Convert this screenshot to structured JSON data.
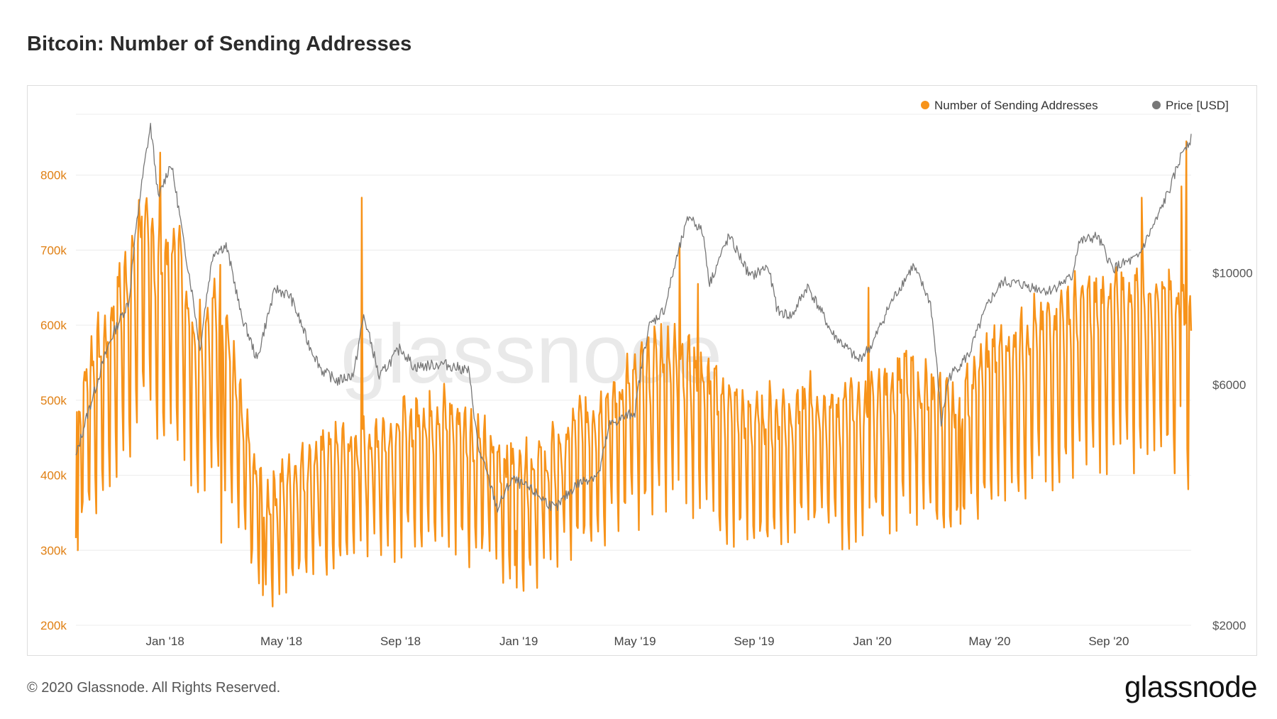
{
  "header": {
    "title": "Bitcoin: Number of Sending Addresses"
  },
  "footer": {
    "copyright": "© 2020 Glassnode. All Rights Reserved.",
    "logo": "glassnode"
  },
  "watermark": "glassnode",
  "colors": {
    "sending": "#f7931a",
    "price": "#777777",
    "grid": "#ececec",
    "left_axis_text": "#e07f12",
    "right_axis_text": "#555555"
  },
  "chart_data": {
    "type": "line",
    "title": "Bitcoin: Number of Sending Addresses",
    "legend": {
      "position": "top-right",
      "entries": [
        "Number of Sending Addresses",
        "Price [USD]"
      ]
    },
    "grid": true,
    "x_range": [
      "2017-10-01",
      "2020-11-25"
    ],
    "x_ticks": [
      {
        "label": "Jan '18",
        "date": "2018-01-01"
      },
      {
        "label": "May '18",
        "date": "2018-05-01"
      },
      {
        "label": "Sep '18",
        "date": "2018-09-01"
      },
      {
        "label": "Jan '19",
        "date": "2019-01-01"
      },
      {
        "label": "May '19",
        "date": "2019-05-01"
      },
      {
        "label": "Sep '19",
        "date": "2019-09-01"
      },
      {
        "label": "Jan '20",
        "date": "2020-01-01"
      },
      {
        "label": "May '20",
        "date": "2020-05-01"
      },
      {
        "label": "Sep '20",
        "date": "2020-09-01"
      }
    ],
    "y_left": {
      "ticks": [
        {
          "value": 200000,
          "label": "200k"
        },
        {
          "value": 300000,
          "label": "300k"
        },
        {
          "value": 400000,
          "label": "400k"
        },
        {
          "value": 500000,
          "label": "500k"
        },
        {
          "value": 600000,
          "label": "600k"
        },
        {
          "value": 700000,
          "label": "700k"
        },
        {
          "value": 800000,
          "label": "800k"
        }
      ],
      "range": [
        200000,
        900000
      ]
    },
    "y_right": {
      "scale": "log",
      "ticks": [
        {
          "value": 2000,
          "label": "$2000"
        },
        {
          "value": 6000,
          "label": "$6000"
        },
        {
          "value": 10000,
          "label": "$10000"
        }
      ],
      "range": [
        2000,
        22000
      ]
    },
    "series": [
      {
        "name": "Number of Sending Addresses",
        "axis": "left",
        "color": "#f7931a",
        "points": [
          [
            "2017-10-01",
            440000
          ],
          [
            "2017-10-15",
            510000
          ],
          [
            "2017-11-01",
            540000
          ],
          [
            "2017-11-15",
            600000
          ],
          [
            "2017-12-01",
            640000
          ],
          [
            "2017-12-10",
            700000
          ],
          [
            "2017-12-20",
            650000
          ],
          [
            "2018-01-01",
            640000
          ],
          [
            "2018-01-15",
            650000
          ],
          [
            "2018-02-01",
            540000
          ],
          [
            "2018-02-15",
            570000
          ],
          [
            "2018-03-01",
            590000
          ],
          [
            "2018-03-15",
            480000
          ],
          [
            "2018-04-01",
            380000
          ],
          [
            "2018-04-15",
            340000
          ],
          [
            "2018-05-01",
            360000
          ],
          [
            "2018-06-01",
            390000
          ],
          [
            "2018-07-01",
            400000
          ],
          [
            "2018-08-01",
            420000
          ],
          [
            "2018-09-01",
            430000
          ],
          [
            "2018-10-01",
            450000
          ],
          [
            "2018-11-01",
            440000
          ],
          [
            "2018-12-01",
            400000
          ],
          [
            "2019-01-01",
            380000
          ],
          [
            "2019-02-01",
            390000
          ],
          [
            "2019-03-01",
            430000
          ],
          [
            "2019-04-01",
            460000
          ],
          [
            "2019-05-01",
            490000
          ],
          [
            "2019-06-01",
            530000
          ],
          [
            "2019-07-01",
            510000
          ],
          [
            "2019-08-01",
            460000
          ],
          [
            "2019-09-01",
            440000
          ],
          [
            "2019-10-01",
            450000
          ],
          [
            "2019-11-01",
            460000
          ],
          [
            "2019-12-01",
            450000
          ],
          [
            "2020-01-01",
            460000
          ],
          [
            "2020-02-01",
            500000
          ],
          [
            "2020-03-01",
            470000
          ],
          [
            "2020-04-01",
            460000
          ],
          [
            "2020-05-01",
            520000
          ],
          [
            "2020-06-01",
            540000
          ],
          [
            "2020-07-01",
            560000
          ],
          [
            "2020-08-01",
            580000
          ],
          [
            "2020-09-01",
            590000
          ],
          [
            "2020-10-01",
            600000
          ],
          [
            "2020-11-01",
            600000
          ],
          [
            "2020-11-25",
            560000
          ]
        ],
        "spikes": [
          [
            "2017-10-03",
            300000
          ],
          [
            "2017-12-27",
            830000
          ],
          [
            "2017-12-08",
            745000
          ],
          [
            "2018-02-28",
            310000
          ],
          [
            "2018-04-12",
            240000
          ],
          [
            "2018-07-23",
            770000
          ],
          [
            "2018-12-28",
            280000
          ],
          [
            "2019-06-16",
            705000
          ],
          [
            "2019-07-05",
            655000
          ],
          [
            "2019-12-28",
            650000
          ],
          [
            "2020-04-01",
            335000
          ],
          [
            "2020-10-05",
            770000
          ],
          [
            "2020-11-20",
            845000
          ],
          [
            "2020-11-15",
            785000
          ]
        ]
      },
      {
        "name": "Price [USD]",
        "axis": "right",
        "color": "#777777",
        "points": [
          [
            "2017-10-01",
            4300
          ],
          [
            "2017-10-20",
            5800
          ],
          [
            "2017-11-05",
            7300
          ],
          [
            "2017-11-25",
            8800
          ],
          [
            "2017-12-08",
            15000
          ],
          [
            "2017-12-17",
            19500
          ],
          [
            "2017-12-25",
            14000
          ],
          [
            "2018-01-07",
            16500
          ],
          [
            "2018-01-20",
            11500
          ],
          [
            "2018-02-06",
            7000
          ],
          [
            "2018-02-20",
            11000
          ],
          [
            "2018-03-05",
            11300
          ],
          [
            "2018-03-20",
            8300
          ],
          [
            "2018-04-06",
            6700
          ],
          [
            "2018-04-25",
            9300
          ],
          [
            "2018-05-10",
            9000
          ],
          [
            "2018-05-28",
            7300
          ],
          [
            "2018-06-12",
            6400
          ],
          [
            "2018-06-28",
            6100
          ],
          [
            "2018-07-15",
            6300
          ],
          [
            "2018-07-25",
            8200
          ],
          [
            "2018-08-10",
            6200
          ],
          [
            "2018-09-01",
            7100
          ],
          [
            "2018-09-15",
            6500
          ],
          [
            "2018-10-15",
            6600
          ],
          [
            "2018-11-10",
            6400
          ],
          [
            "2018-11-20",
            4500
          ],
          [
            "2018-12-10",
            3400
          ],
          [
            "2018-12-25",
            3900
          ],
          [
            "2019-01-15",
            3700
          ],
          [
            "2019-02-08",
            3400
          ],
          [
            "2019-03-01",
            3800
          ],
          [
            "2019-03-25",
            4000
          ],
          [
            "2019-04-05",
            5000
          ],
          [
            "2019-05-01",
            5300
          ],
          [
            "2019-05-15",
            7800
          ],
          [
            "2019-06-01",
            8500
          ],
          [
            "2019-06-26",
            13000
          ],
          [
            "2019-07-10",
            12000
          ],
          [
            "2019-07-17",
            9500
          ],
          [
            "2019-08-06",
            11800
          ],
          [
            "2019-08-28",
            9800
          ],
          [
            "2019-09-15",
            10300
          ],
          [
            "2019-09-25",
            8400
          ],
          [
            "2019-10-10",
            8200
          ],
          [
            "2019-10-26",
            9400
          ],
          [
            "2019-11-20",
            7600
          ],
          [
            "2019-12-17",
            6700
          ],
          [
            "2020-01-01",
            7200
          ],
          [
            "2020-01-20",
            8700
          ],
          [
            "2020-02-12",
            10300
          ],
          [
            "2020-03-01",
            8700
          ],
          [
            "2020-03-12",
            5000
          ],
          [
            "2020-03-20",
            6200
          ],
          [
            "2020-04-10",
            6900
          ],
          [
            "2020-05-01",
            8800
          ],
          [
            "2020-05-15",
            9600
          ],
          [
            "2020-06-01",
            9500
          ],
          [
            "2020-07-01",
            9200
          ],
          [
            "2020-07-25",
            9800
          ],
          [
            "2020-08-01",
            11500
          ],
          [
            "2020-08-20",
            11800
          ],
          [
            "2020-09-05",
            10200
          ],
          [
            "2020-10-01",
            10700
          ],
          [
            "2020-10-21",
            12800
          ],
          [
            "2020-11-05",
            15000
          ],
          [
            "2020-11-18",
            17800
          ],
          [
            "2020-11-25",
            18400
          ]
        ]
      }
    ]
  }
}
